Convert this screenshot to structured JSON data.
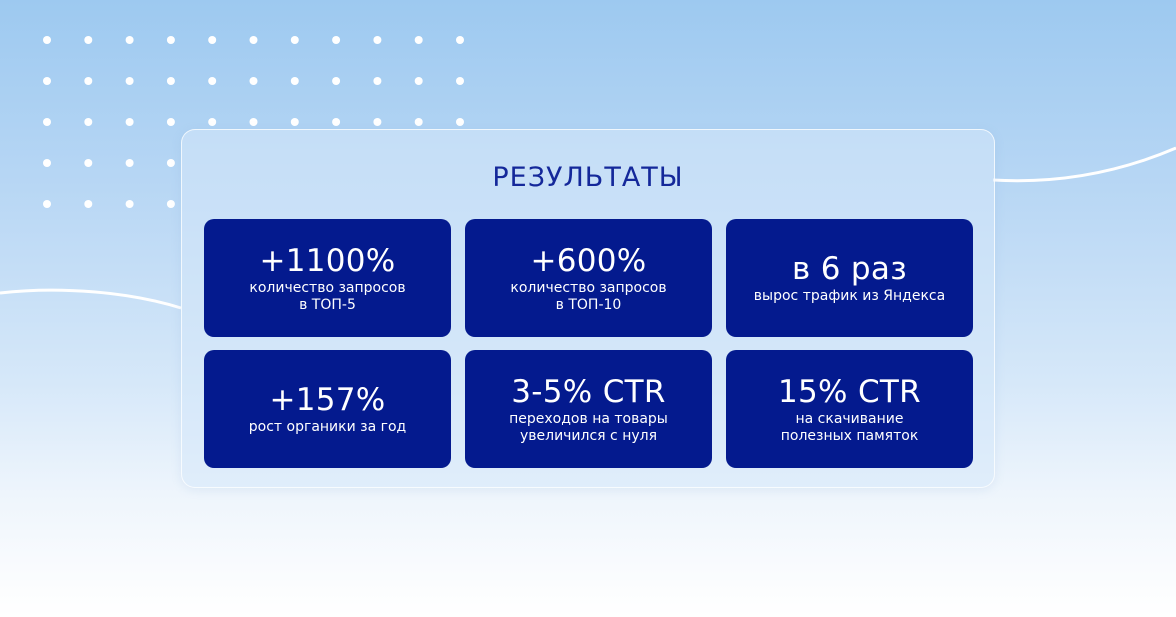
{
  "title": "РЕЗУЛЬТАТЫ",
  "colors": {
    "card_background": "#041a8e",
    "title_text": "#14289a",
    "card_text": "#ffffff"
  },
  "cards": [
    {
      "value": "+1100%",
      "desc": [
        "количество запросов",
        "в ТОП-5"
      ]
    },
    {
      "value": "+600%",
      "desc": [
        "количество запросов",
        "в ТОП-10"
      ]
    },
    {
      "value": "в 6 раз",
      "desc": [
        "вырос трафик из Яндекса"
      ]
    },
    {
      "value": "+157%",
      "desc": [
        "рост органики за год"
      ]
    },
    {
      "value": "3-5% CTR",
      "desc": [
        "переходов на товары",
        "увеличился с нуля"
      ]
    },
    {
      "value": "15% CTR",
      "desc": [
        "на скачивание",
        "полезных памяток"
      ]
    }
  ]
}
